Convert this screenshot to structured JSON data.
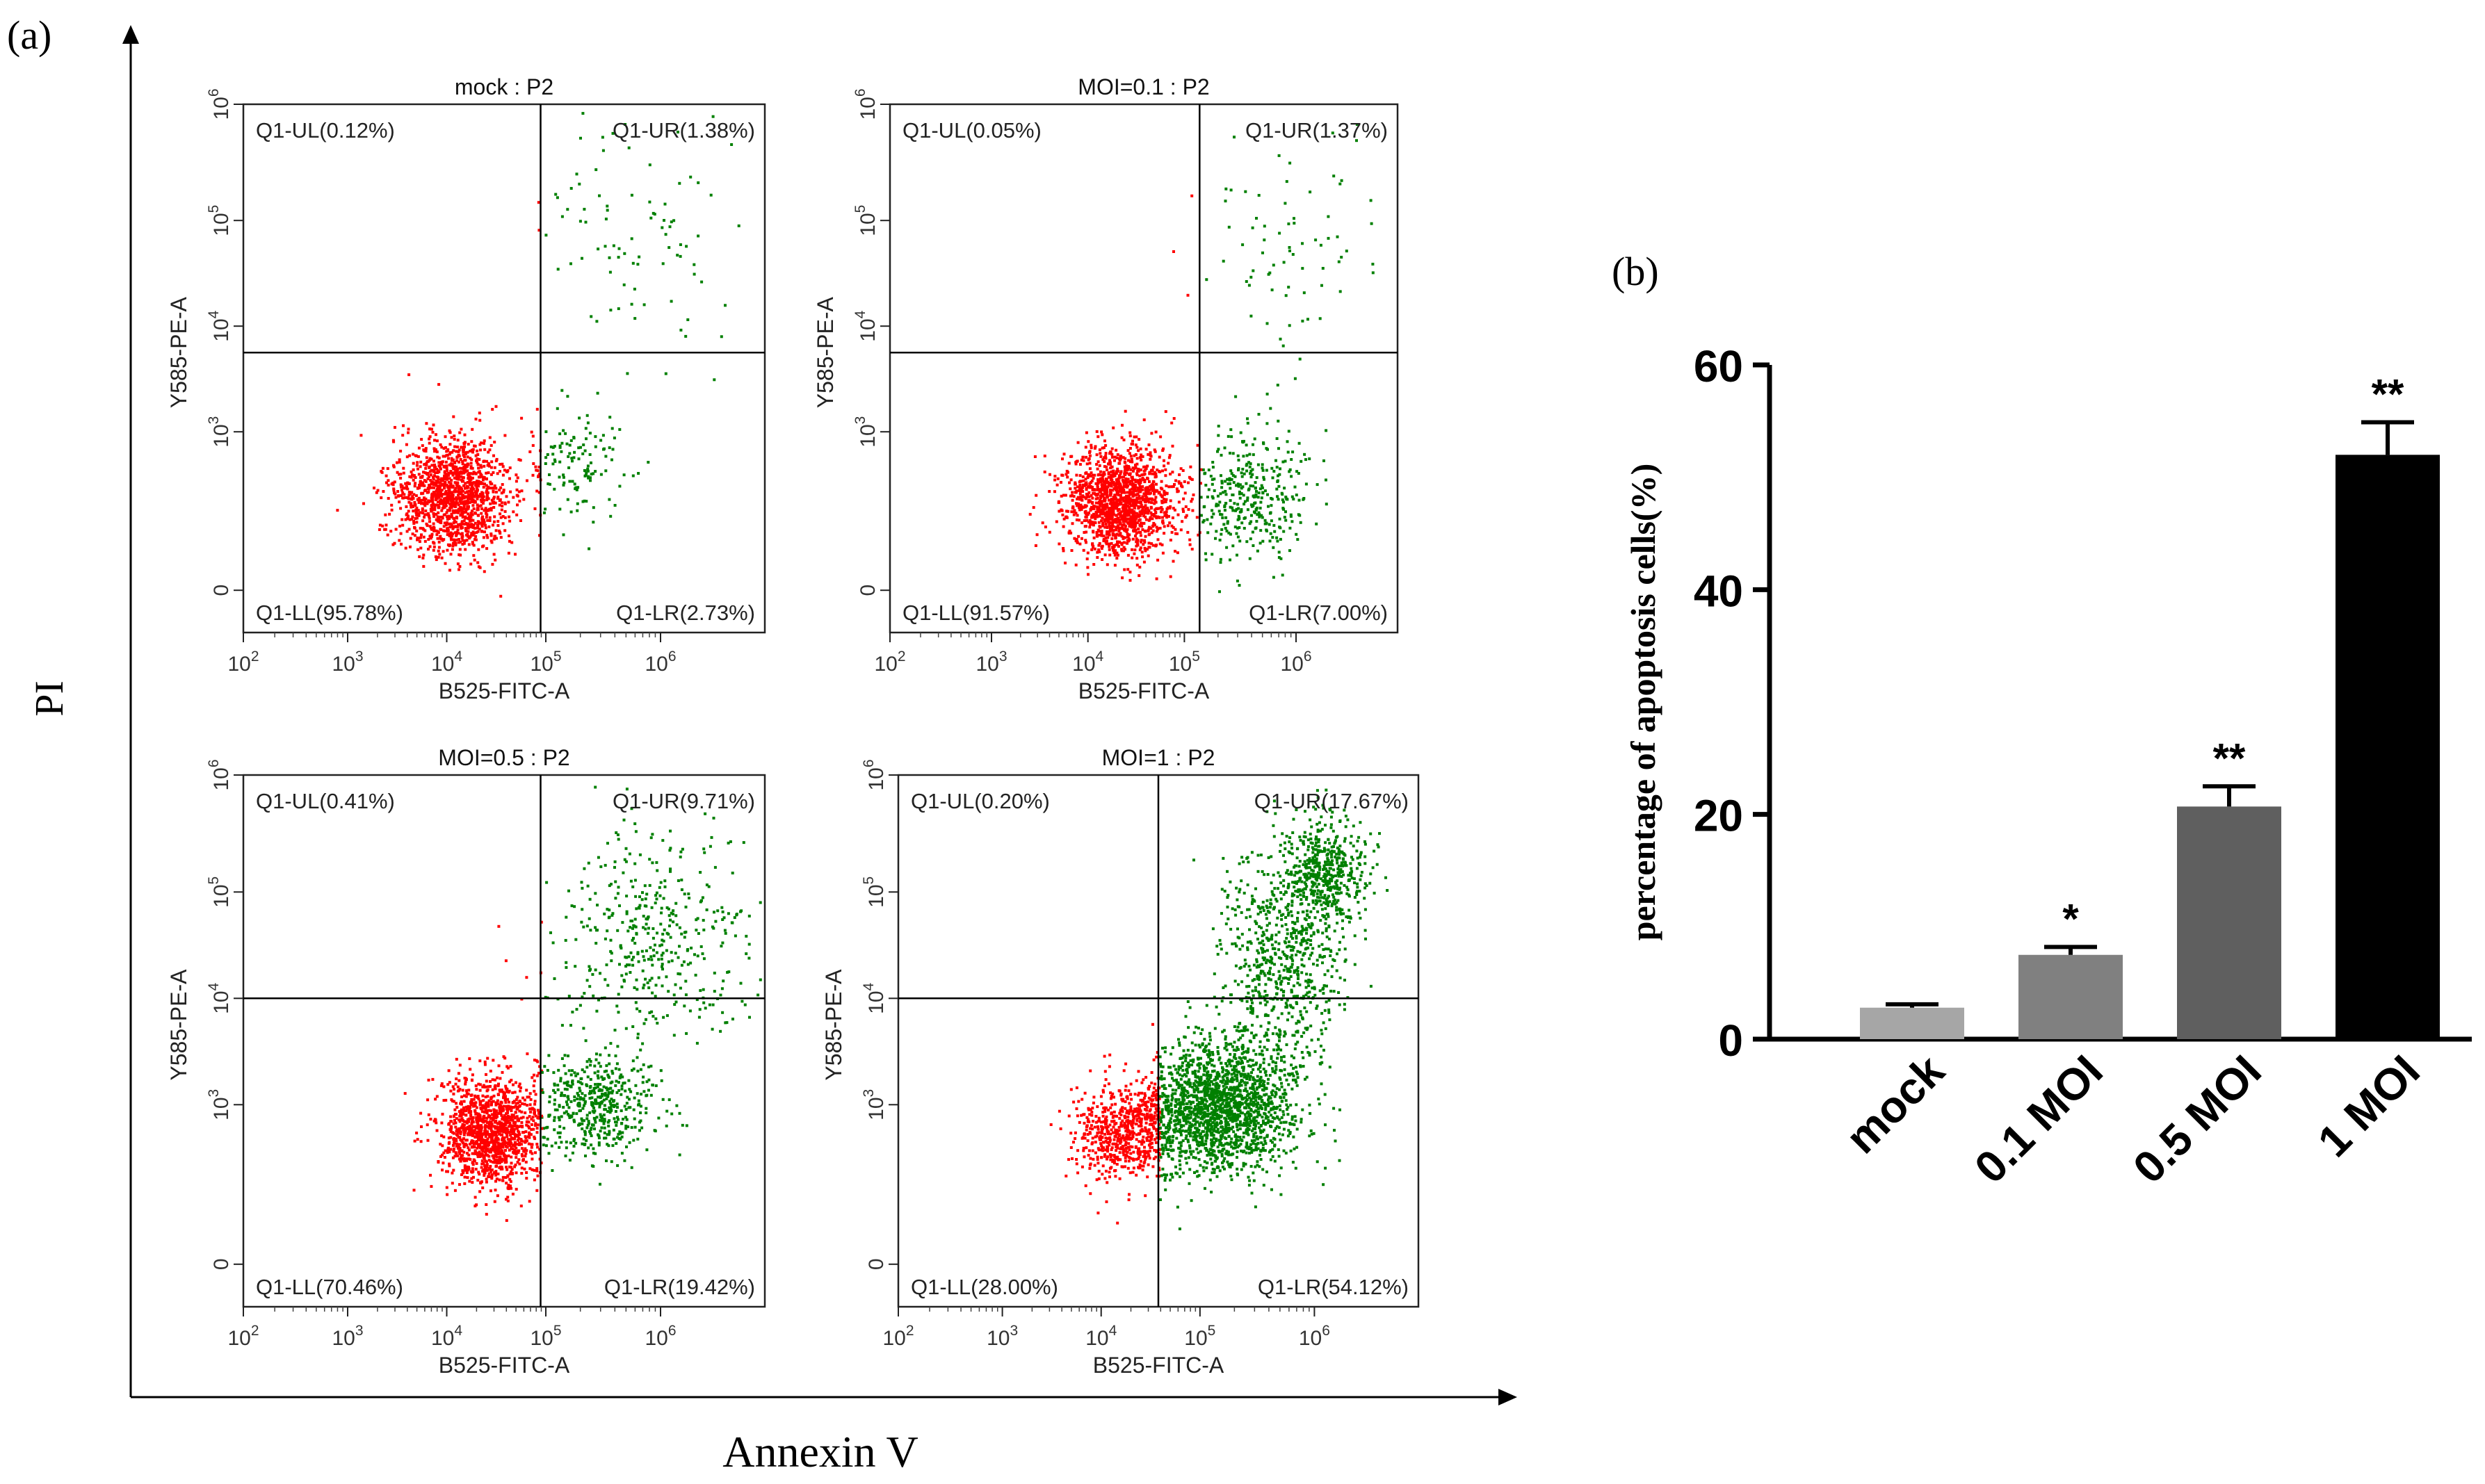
{
  "panel_a": {
    "label": "(a)",
    "y_label": "PI",
    "x_label": "Annexin V"
  },
  "panel_b": {
    "label": "(b)"
  },
  "chart_data": [
    {
      "type": "scatter",
      "title": "mock : P2",
      "xlabel": "B525-FITC-A",
      "ylabel": "Y585-PE-A",
      "x_ticks": [
        "10^2",
        "10^3",
        "10^4",
        "10^5",
        "10^6"
      ],
      "y_ticks": [
        "0",
        "10^3",
        "10^4",
        "10^5",
        "10^6"
      ],
      "quadrants": {
        "UL": "Q1-UL(0.12%)",
        "UR": "Q1-UR(1.38%)",
        "LL": "Q1-LL(95.78%)",
        "LR": "Q1-LR(2.73%)"
      },
      "colors": {
        "live": "#ff0000",
        "apoptotic": "#008000"
      }
    },
    {
      "type": "scatter",
      "title": "MOI=0.1 : P2",
      "xlabel": "B525-FITC-A",
      "ylabel": "Y585-PE-A",
      "x_ticks": [
        "10^2",
        "10^3",
        "10^4",
        "10^5",
        "10^6"
      ],
      "y_ticks": [
        "0",
        "10^3",
        "10^4",
        "10^5",
        "10^6"
      ],
      "quadrants": {
        "UL": "Q1-UL(0.05%)",
        "UR": "Q1-UR(1.37%)",
        "LL": "Q1-LL(91.57%)",
        "LR": "Q1-LR(7.00%)"
      },
      "colors": {
        "live": "#ff0000",
        "apoptotic": "#008000"
      }
    },
    {
      "type": "scatter",
      "title": "MOI=0.5 : P2",
      "xlabel": "B525-FITC-A",
      "ylabel": "Y585-PE-A",
      "x_ticks": [
        "10^2",
        "10^3",
        "10^4",
        "10^5",
        "10^6"
      ],
      "y_ticks": [
        "0",
        "10^3",
        "10^4",
        "10^5",
        "10^6"
      ],
      "quadrants": {
        "UL": "Q1-UL(0.41%)",
        "UR": "Q1-UR(9.71%)",
        "LL": "Q1-LL(70.46%)",
        "LR": "Q1-LR(19.42%)"
      },
      "colors": {
        "live": "#ff0000",
        "apoptotic": "#008000"
      }
    },
    {
      "type": "scatter",
      "title": "MOI=1 : P2",
      "xlabel": "B525-FITC-A",
      "ylabel": "Y585-PE-A",
      "x_ticks": [
        "10^2",
        "10^3",
        "10^4",
        "10^5",
        "10^6"
      ],
      "y_ticks": [
        "0",
        "10^3",
        "10^4",
        "10^5",
        "10^6"
      ],
      "quadrants": {
        "UL": "Q1-UL(0.20%)",
        "UR": "Q1-UR(17.67%)",
        "LL": "Q1-LL(28.00%)",
        "LR": "Q1-LR(54.12%)"
      },
      "colors": {
        "live": "#ff0000",
        "apoptotic": "#008000"
      }
    },
    {
      "type": "bar",
      "title": "",
      "xlabel": "",
      "ylabel": "percentage of apoptosis cells(%)",
      "ylim": [
        0,
        60
      ],
      "y_ticks": [
        0,
        20,
        40,
        60
      ],
      "categories": [
        "mock",
        "0.1 MOI",
        "0.5 MOI",
        "1 MOI"
      ],
      "values": [
        2.8,
        7.5,
        20.7,
        52.0
      ],
      "errors": [
        0.3,
        0.7,
        1.8,
        2.9
      ],
      "significance": [
        "",
        "*",
        "**",
        "**"
      ],
      "colors": [
        "#a6a6a6",
        "#808080",
        "#5f5f5f",
        "#000000"
      ]
    }
  ]
}
